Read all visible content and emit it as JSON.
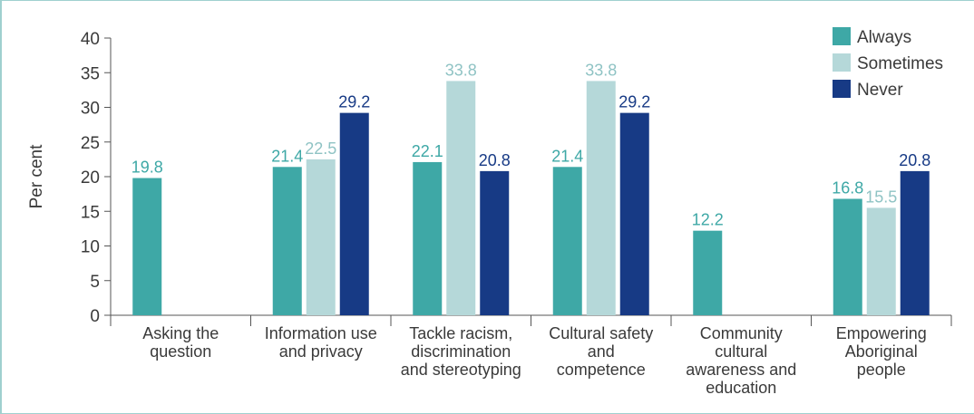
{
  "chart_data": {
    "type": "bar",
    "ylabel": "Per cent",
    "ylim": [
      0,
      40
    ],
    "yticks": [
      0,
      5,
      10,
      15,
      20,
      25,
      30,
      35,
      40
    ],
    "categories": [
      [
        "Asking the",
        "question"
      ],
      [
        "Information use",
        "and privacy"
      ],
      [
        "Tackle racism,",
        "discrimination",
        "and stereotyping"
      ],
      [
        "Cultural safety",
        "and",
        "competence"
      ],
      [
        "Community",
        "cultural",
        "awareness and",
        "education"
      ],
      [
        "Empowering",
        "Aboriginal",
        "people"
      ]
    ],
    "series": [
      {
        "name": "Always",
        "color": "#3ea8a6",
        "values": [
          19.8,
          21.4,
          22.1,
          21.4,
          12.2,
          16.8
        ],
        "labels": [
          "19.8",
          "21.4",
          "22.1",
          "21.4",
          "12.2",
          "16.8"
        ]
      },
      {
        "name": "Sometimes",
        "color": "#b5d8d9",
        "values": [
          null,
          22.5,
          33.8,
          33.8,
          null,
          15.5
        ],
        "labels": [
          "",
          "22.5",
          "33.8",
          "33.8",
          "",
          "15.5"
        ]
      },
      {
        "name": "Never",
        "color": "#173a85",
        "values": [
          null,
          29.2,
          20.8,
          29.2,
          null,
          20.8
        ],
        "labels": [
          "",
          "29.2",
          "20.8",
          "29.2",
          "",
          "20.8"
        ]
      }
    ],
    "label_colors": [
      "#3ea8a6",
      "#8fc3c4",
      "#173a85"
    ],
    "legend_position": "top-right",
    "grid": false
  }
}
